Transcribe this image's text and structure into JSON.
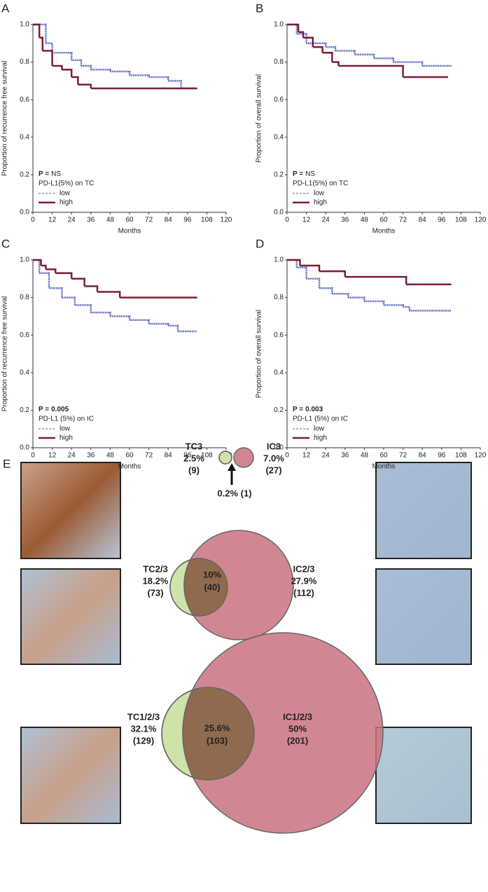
{
  "chart_data": [
    {
      "type": "line",
      "step": true,
      "panel": "A",
      "xlabel": "Months",
      "ylabel": "Proportion of recurrence free survival",
      "xlim": [
        0,
        120
      ],
      "xticks": [
        0,
        12,
        24,
        36,
        48,
        60,
        72,
        84,
        96,
        108,
        120
      ],
      "ylim": [
        0,
        1
      ],
      "yticks": [
        {
          "value": 0,
          "label": "0.0"
        },
        {
          "value": 0.2,
          "label": "0.2"
        },
        {
          "value": 0.4,
          "label": "0.4"
        },
        {
          "value": 0.6,
          "label": "0.6"
        },
        {
          "value": 0.8,
          "label": "0.8"
        },
        {
          "value": 1,
          "label": "1.0"
        }
      ],
      "p_label": "P =",
      "p_value": "NS",
      "p_value_bold": false,
      "legend_title": "PD-L1(5%) on TC",
      "series": [
        {
          "name": "low",
          "color": "#4a5bbd",
          "dashed": true,
          "x": [
            0,
            8,
            12,
            24,
            30,
            36,
            48,
            60,
            72,
            84,
            92,
            102
          ],
          "values": [
            1.0,
            0.9,
            0.85,
            0.81,
            0.78,
            0.76,
            0.75,
            0.73,
            0.72,
            0.7,
            0.66,
            0.66
          ]
        },
        {
          "name": "high",
          "color": "#7b1e34",
          "dashed": false,
          "x": [
            0,
            4,
            6,
            8,
            12,
            18,
            24,
            28,
            36,
            102
          ],
          "values": [
            1.0,
            0.93,
            0.86,
            0.86,
            0.78,
            0.76,
            0.72,
            0.68,
            0.66,
            0.66
          ]
        }
      ]
    },
    {
      "type": "line",
      "step": true,
      "panel": "B",
      "xlabel": "Months",
      "ylabel": "Proportion of overall survival",
      "xlim": [
        0,
        120
      ],
      "xticks": [
        0,
        12,
        24,
        36,
        48,
        60,
        72,
        84,
        96,
        108,
        120
      ],
      "ylim": [
        0,
        1
      ],
      "yticks": [
        {
          "value": 0,
          "label": "0.0"
        },
        {
          "value": 0.2,
          "label": "0.2"
        },
        {
          "value": 0.4,
          "label": "0.4"
        },
        {
          "value": 0.6,
          "label": "0.6"
        },
        {
          "value": 0.8,
          "label": "0.8"
        },
        {
          "value": 1,
          "label": "1.0"
        }
      ],
      "p_label": "P =",
      "p_value": "NS",
      "p_value_bold": false,
      "legend_title": "PD-L1(5%) on TC",
      "series": [
        {
          "name": "low",
          "color": "#4a5bbd",
          "dashed": true,
          "x": [
            0,
            6,
            12,
            24,
            30,
            42,
            54,
            66,
            84,
            102
          ],
          "values": [
            1.0,
            0.95,
            0.9,
            0.88,
            0.86,
            0.84,
            0.82,
            0.8,
            0.78,
            0.78
          ]
        },
        {
          "name": "high",
          "color": "#7b1e34",
          "dashed": false,
          "x": [
            0,
            7,
            10,
            16,
            22,
            28,
            32,
            72,
            100
          ],
          "values": [
            1.0,
            0.96,
            0.93,
            0.88,
            0.85,
            0.8,
            0.78,
            0.72,
            0.72
          ]
        }
      ]
    },
    {
      "type": "line",
      "step": true,
      "panel": "C",
      "xlabel": "Months",
      "ylabel": "Proportion of recurrence free survival",
      "xlim": [
        0,
        120
      ],
      "xticks": [
        0,
        12,
        24,
        36,
        48,
        60,
        72,
        84,
        96,
        108,
        120
      ],
      "ylim": [
        0,
        1
      ],
      "yticks": [
        {
          "value": 0,
          "label": "0.0"
        },
        {
          "value": 0.2,
          "label": "0.2"
        },
        {
          "value": 0.4,
          "label": "0.4"
        },
        {
          "value": 0.6,
          "label": "0.6"
        },
        {
          "value": 0.8,
          "label": "0.8"
        },
        {
          "value": 1,
          "label": "1.0"
        }
      ],
      "p_label": "P =",
      "p_value": "0.005",
      "p_value_bold": true,
      "legend_title": "PD-L1 (5%) on IC",
      "series": [
        {
          "name": "low",
          "color": "#4a5bbd",
          "dashed": true,
          "x": [
            0,
            4,
            10,
            18,
            26,
            36,
            48,
            60,
            72,
            84,
            90,
            102
          ],
          "values": [
            1.0,
            0.93,
            0.85,
            0.8,
            0.76,
            0.72,
            0.7,
            0.68,
            0.66,
            0.65,
            0.62,
            0.62
          ]
        },
        {
          "name": "high",
          "color": "#7b1e34",
          "dashed": false,
          "x": [
            0,
            5,
            8,
            14,
            24,
            32,
            40,
            54,
            102
          ],
          "values": [
            1.0,
            0.97,
            0.95,
            0.93,
            0.9,
            0.86,
            0.83,
            0.8,
            0.8
          ]
        }
      ]
    },
    {
      "type": "line",
      "step": true,
      "panel": "D",
      "xlabel": "Months",
      "ylabel": "Proportion of overall survival",
      "xlim": [
        0,
        120
      ],
      "xticks": [
        0,
        12,
        24,
        36,
        48,
        60,
        72,
        84,
        96,
        108,
        120
      ],
      "ylim": [
        0,
        1
      ],
      "yticks": [
        {
          "value": 0,
          "label": "0.0"
        },
        {
          "value": 0.2,
          "label": "0.2"
        },
        {
          "value": 0.4,
          "label": "0.4"
        },
        {
          "value": 0.6,
          "label": "0.6"
        },
        {
          "value": 0.8,
          "label": "0.8"
        },
        {
          "value": 1,
          "label": "1.0"
        }
      ],
      "p_label": "P =",
      "p_value": "0.003",
      "p_value_bold": true,
      "legend_title": "PD-L1 (5%) on IC",
      "series": [
        {
          "name": "low",
          "color": "#4a5bbd",
          "dashed": true,
          "x": [
            0,
            6,
            12,
            20,
            28,
            38,
            48,
            60,
            72,
            76,
            102
          ],
          "values": [
            1.0,
            0.96,
            0.9,
            0.85,
            0.82,
            0.8,
            0.78,
            0.76,
            0.75,
            0.73,
            0.73
          ]
        },
        {
          "name": "high",
          "color": "#7b1e34",
          "dashed": false,
          "x": [
            0,
            8,
            10,
            20,
            36,
            74,
            102
          ],
          "values": [
            1.0,
            0.97,
            0.97,
            0.94,
            0.91,
            0.87,
            0.87
          ]
        }
      ]
    },
    {
      "type": "venn",
      "panel": "E",
      "rows": [
        {
          "left": [
            "TC3",
            "2.5%",
            "(9)"
          ],
          "right": [
            "IC3",
            "7.0%",
            "(27)"
          ],
          "overlap": [
            "0.2% (1)"
          ]
        },
        {
          "left": [
            "TC2/3",
            "18.2%",
            "(73)"
          ],
          "right": [
            "IC2/3",
            "27.9%",
            "(112)"
          ],
          "overlap": [
            "10%",
            "(40)"
          ]
        },
        {
          "left": [
            "TC1/2/3",
            "32.1%",
            "(129)"
          ],
          "right": [
            "IC1/2/3",
            "50%",
            "(201)"
          ],
          "overlap": [
            "25.6%",
            "(103)"
          ]
        }
      ]
    }
  ]
}
